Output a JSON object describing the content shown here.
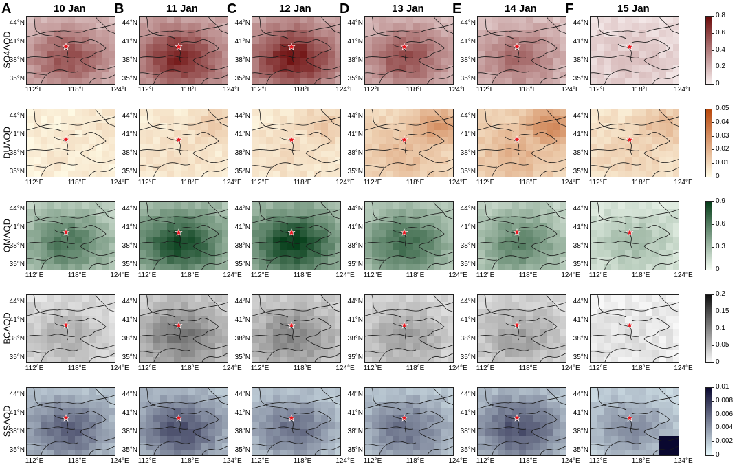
{
  "columns": [
    {
      "letter": "A",
      "date": "10 Jan"
    },
    {
      "letter": "B",
      "date": "11 Jan"
    },
    {
      "letter": "C",
      "date": "12 Jan"
    },
    {
      "letter": "D",
      "date": "13 Jan"
    },
    {
      "letter": "E",
      "date": "14 Jan"
    },
    {
      "letter": "F",
      "date": "15 Jan"
    }
  ],
  "rows": [
    {
      "label": "SO4AOD",
      "colors": [
        "#f7eeee",
        "#6b0a0a"
      ],
      "ticks": [
        "0.8",
        "0.6",
        "0.4",
        "0.2",
        "0"
      ],
      "intensity": [
        0.55,
        0.7,
        0.75,
        0.55,
        0.45,
        0.15
      ]
    },
    {
      "label": "DUAOD",
      "colors": [
        "#fffbe6",
        "#b8470b"
      ],
      "ticks": [
        "0.05",
        "0.04",
        "0.03",
        "0.02",
        "0.01",
        "0"
      ],
      "intensity": [
        0.12,
        0.2,
        0.22,
        0.45,
        0.5,
        0.3
      ]
    },
    {
      "label": "OMAOD",
      "colors": [
        "#f2faf1",
        "#063e1a"
      ],
      "ticks": [
        "0.9",
        "0.6",
        "0.3",
        "0"
      ],
      "intensity": [
        0.55,
        0.75,
        0.8,
        0.6,
        0.5,
        0.25
      ]
    },
    {
      "label": "BCAOD",
      "colors": [
        "#f8f8f8",
        "#101010"
      ],
      "ticks": [
        "0.2",
        "0.15",
        "0.1",
        "0.05",
        "0"
      ],
      "intensity": [
        0.25,
        0.45,
        0.4,
        0.3,
        0.3,
        0.08
      ]
    },
    {
      "label": "SSAOD",
      "colors": [
        "#e6f8fb",
        "#0a0830"
      ],
      "ticks": [
        "0.01",
        "0.008",
        "0.006",
        "0.004",
        "0.002",
        "0"
      ],
      "intensity": [
        0.5,
        0.55,
        0.45,
        0.45,
        0.55,
        0.35
      ]
    }
  ],
  "lat_labels": [
    "44°N",
    "41°N",
    "38°N",
    "35°N"
  ],
  "lon_labels": [
    "112°E",
    "118°E",
    "124°E"
  ],
  "marker_icon": "red-star-icon"
}
